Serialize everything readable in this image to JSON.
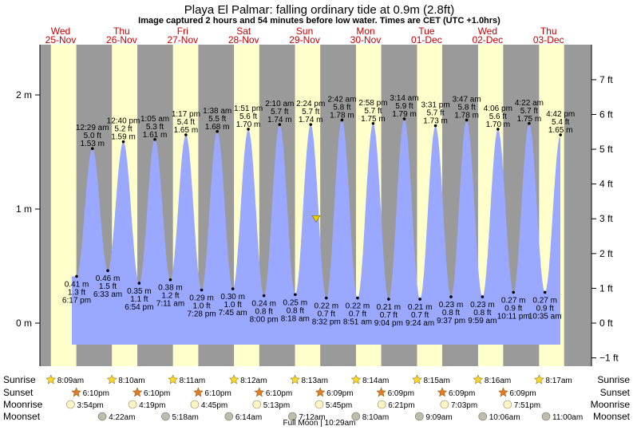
{
  "title": "Playa El Palmar: falling  ordinary tide at 0.9m (2.8ft)",
  "subtitle": "Image captured 2 hours and 54 minutes before low water. Times are CET (UTC +1.0hrs)",
  "colors": {
    "night": "#9a9a9a",
    "day": "#ffffcc",
    "water": "#9aa8ff",
    "dayLabel": "#cc0000",
    "marker": "#e8d000"
  },
  "days": [
    {
      "dow": "Wed",
      "date": "25-Nov"
    },
    {
      "dow": "Thu",
      "date": "26-Nov"
    },
    {
      "dow": "Fri",
      "date": "27-Nov"
    },
    {
      "dow": "Sat",
      "date": "28-Nov"
    },
    {
      "dow": "Sun",
      "date": "29-Nov"
    },
    {
      "dow": "Mon",
      "date": "30-Nov"
    },
    {
      "dow": "Tue",
      "date": "01-Dec"
    },
    {
      "dow": "Wed",
      "date": "02-Dec"
    },
    {
      "dow": "Thu",
      "date": "03-Dec"
    }
  ],
  "chart_data": {
    "type": "area",
    "y_left_ticks": [
      "2 m",
      "1 m",
      "0 m"
    ],
    "y_right_ticks": [
      "7 ft",
      "6 ft",
      "5 ft",
      "4 ft",
      "3 ft",
      "2 ft",
      "1 ft",
      "0 ft",
      "−1 ft"
    ],
    "ylim_m": [
      -0.22,
      2.42
    ],
    "current_level_m": 0.9,
    "tides": [
      {
        "type": "low",
        "time": "6:17 pm",
        "m": "0.41 m",
        "ft": "1.3 ft",
        "h": 0.41
      },
      {
        "type": "high",
        "time": "12:29 am",
        "m": "1.53 m",
        "ft": "5.0 ft",
        "h": 1.53
      },
      {
        "type": "low",
        "time": "6:33 am",
        "m": "0.46 m",
        "ft": "1.5 ft",
        "h": 0.46
      },
      {
        "type": "high",
        "time": "12:40 pm",
        "m": "1.59 m",
        "ft": "5.2 ft",
        "h": 1.59
      },
      {
        "type": "low",
        "time": "6:54 pm",
        "m": "0.35 m",
        "ft": "1.1 ft",
        "h": 0.35
      },
      {
        "type": "high",
        "time": "1:05 am",
        "m": "1.61 m",
        "ft": "5.3 ft",
        "h": 1.61
      },
      {
        "type": "low",
        "time": "7:11 am",
        "m": "0.38 m",
        "ft": "1.2 ft",
        "h": 0.38
      },
      {
        "type": "high",
        "time": "1:17 pm",
        "m": "1.65 m",
        "ft": "5.4 ft",
        "h": 1.65
      },
      {
        "type": "low",
        "time": "7:28 pm",
        "m": "0.29 m",
        "ft": "1.0 ft",
        "h": 0.29
      },
      {
        "type": "high",
        "time": "1:38 am",
        "m": "1.68 m",
        "ft": "5.5 ft",
        "h": 1.68
      },
      {
        "type": "low",
        "time": "7:45 am",
        "m": "0.30 m",
        "ft": "1.0 ft",
        "h": 0.3
      },
      {
        "type": "high",
        "time": "1:51 pm",
        "m": "1.70 m",
        "ft": "5.6 ft",
        "h": 1.7
      },
      {
        "type": "low",
        "time": "8:00 pm",
        "m": "0.24 m",
        "ft": "0.8 ft",
        "h": 0.24
      },
      {
        "type": "high",
        "time": "2:10 am",
        "m": "1.74 m",
        "ft": "5.7 ft",
        "h": 1.74
      },
      {
        "type": "low",
        "time": "8:18 am",
        "m": "0.25 m",
        "ft": "0.8 ft",
        "h": 0.25
      },
      {
        "type": "high",
        "time": "2:24 pm",
        "m": "1.74 m",
        "ft": "5.7 ft",
        "h": 1.74
      },
      {
        "type": "low",
        "time": "8:32 pm",
        "m": "0.22 m",
        "ft": "0.7 ft",
        "h": 0.22
      },
      {
        "type": "high",
        "time": "2:42 am",
        "m": "1.78 m",
        "ft": "5.8 ft",
        "h": 1.78
      },
      {
        "type": "low",
        "time": "8:51 am",
        "m": "0.22 m",
        "ft": "0.7 ft",
        "h": 0.22
      },
      {
        "type": "high",
        "time": "2:58 pm",
        "m": "1.75 m",
        "ft": "5.7 ft",
        "h": 1.75
      },
      {
        "type": "low",
        "time": "9:04 pm",
        "m": "0.21 m",
        "ft": "0.7 ft",
        "h": 0.21
      },
      {
        "type": "high",
        "time": "3:14 am",
        "m": "1.79 m",
        "ft": "5.9 ft",
        "h": 1.79
      },
      {
        "type": "low",
        "time": "9:24 am",
        "m": "0.21 m",
        "ft": "0.7 ft",
        "h": 0.21
      },
      {
        "type": "high",
        "time": "3:31 pm",
        "m": "1.73 m",
        "ft": "5.7 ft",
        "h": 1.73
      },
      {
        "type": "low",
        "time": "9:37 pm",
        "m": "0.23 m",
        "ft": "0.8 ft",
        "h": 0.23
      },
      {
        "type": "high",
        "time": "3:47 am",
        "m": "1.78 m",
        "ft": "5.8 ft",
        "h": 1.78
      },
      {
        "type": "low",
        "time": "9:59 am",
        "m": "0.23 m",
        "ft": "0.8 ft",
        "h": 0.23
      },
      {
        "type": "high",
        "time": "4:06 pm",
        "m": "1.70 m",
        "ft": "5.6 ft",
        "h": 1.7
      },
      {
        "type": "low",
        "time": "10:11 pm",
        "m": "0.27 m",
        "ft": "0.9 ft",
        "h": 0.27
      },
      {
        "type": "high",
        "time": "4:22 am",
        "m": "1.75 m",
        "ft": "5.7 ft",
        "h": 1.75
      },
      {
        "type": "low",
        "time": "10:35 am",
        "m": "0.27 m",
        "ft": "0.9 ft",
        "h": 0.27
      },
      {
        "type": "high",
        "time": "4:42 pm",
        "m": "1.65 m",
        "ft": "5.4 ft",
        "h": 1.65
      }
    ]
  },
  "rows": {
    "labels": [
      "Sunrise",
      "Sunset",
      "Moonrise",
      "Moonset"
    ],
    "sunrise": [
      "8:09am",
      "8:10am",
      "8:11am",
      "8:12am",
      "8:13am",
      "8:14am",
      "8:15am",
      "8:16am",
      "8:17am"
    ],
    "sunset": [
      "6:10pm",
      "6:10pm",
      "6:10pm",
      "6:10pm",
      "6:09pm",
      "6:09pm",
      "6:09pm",
      "6:09pm"
    ],
    "moonrise": [
      "3:54pm",
      "4:19pm",
      "4:45pm",
      "5:13pm",
      "5:45pm",
      "6:21pm",
      "7:03pm",
      "7:51pm"
    ],
    "moonset": [
      "4:22am",
      "5:18am",
      "6:14am",
      "7:12am",
      "8:10am",
      "9:09am",
      "10:06am",
      "11:00am"
    ]
  },
  "footer": "Full Moon | 10:29am"
}
